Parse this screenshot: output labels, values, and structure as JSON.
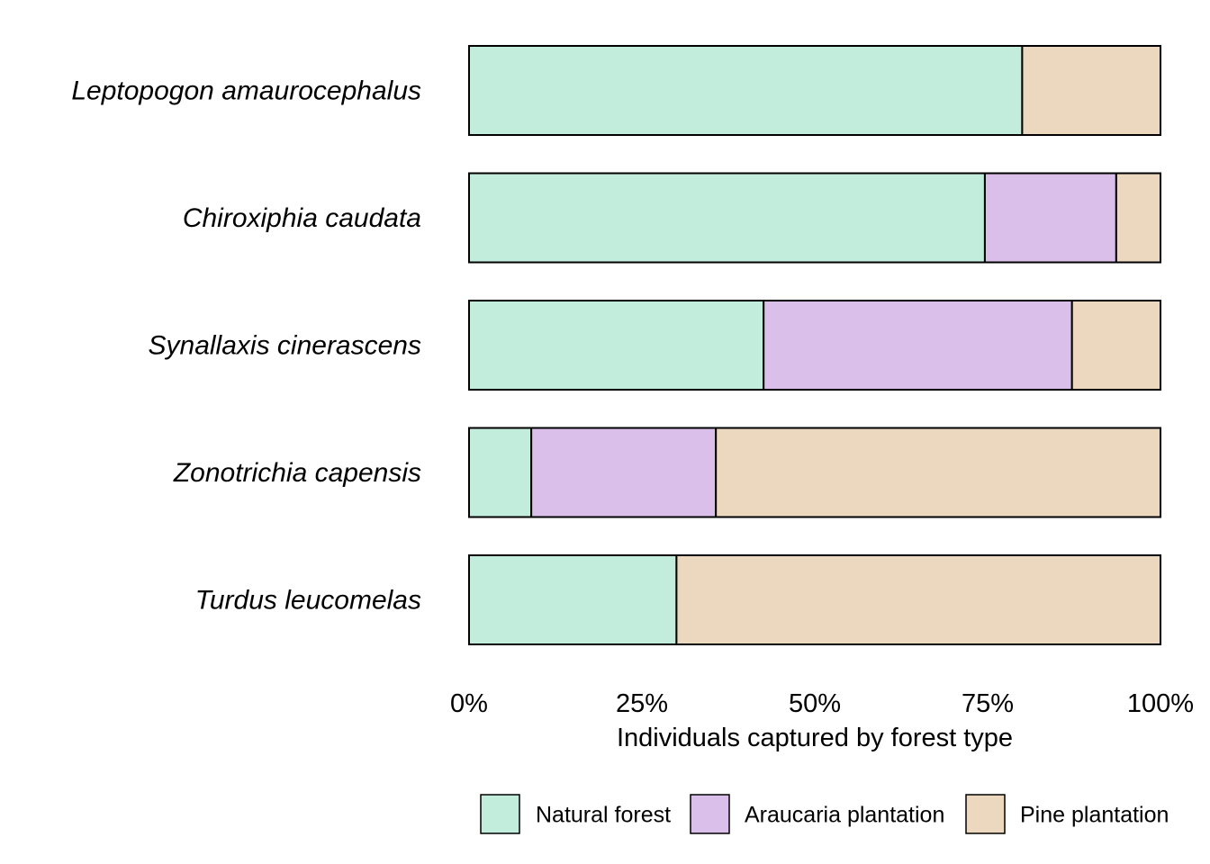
{
  "chart_data": {
    "type": "bar",
    "orientation": "horizontal",
    "stacked": true,
    "normalized": true,
    "categories": [
      "Leptopogon amaurocephalus",
      "Chiroxiphia caudata",
      "Synallaxis cinerascens",
      "Zonotrichia capensis",
      "Turdus leucomelas"
    ],
    "series": [
      {
        "name": "Natural forest",
        "color": "#c2ecdb",
        "values": [
          80,
          74.6,
          42.6,
          9,
          30
        ]
      },
      {
        "name": "Araucaria plantation",
        "color": "#d9bfea",
        "values": [
          0,
          19,
          44.6,
          26.7,
          0
        ]
      },
      {
        "name": "Pine plantation",
        "color": "#ecd8be",
        "values": [
          20,
          6.4,
          12.8,
          64.3,
          70
        ]
      }
    ],
    "xlabel": "Individuals captured by forest type",
    "ylabel": "",
    "xlim": [
      0,
      100
    ],
    "x_ticks": [
      "0%",
      "25%",
      "50%",
      "75%",
      "100%"
    ],
    "x_tick_values": [
      0,
      25,
      50,
      75,
      100
    ],
    "grid": false,
    "legend_position": "bottom"
  }
}
